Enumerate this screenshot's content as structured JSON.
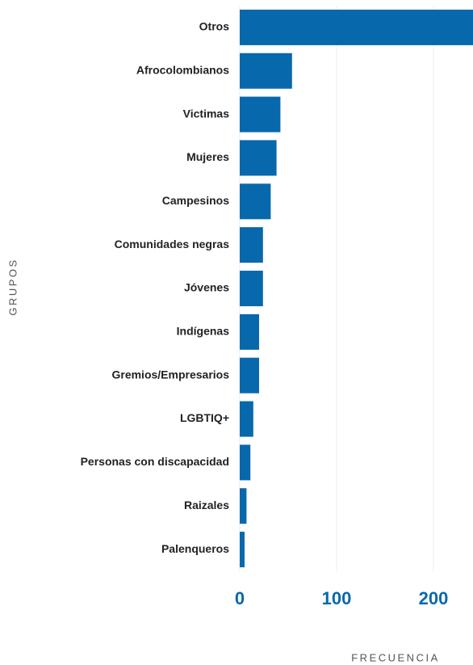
{
  "chart_data": {
    "type": "bar",
    "orientation": "horizontal",
    "categories": [
      "Otros",
      "Afrocolombianos",
      "Victimas",
      "Mujeres",
      "Campesinos",
      "Comunidades negras",
      "Jóvenes",
      "Indígenas",
      "Gremios/Empresarios",
      "LGBTIQ+",
      "Personas con discapacidad",
      "Raizales",
      "Palenqueros"
    ],
    "values": [
      242,
      54,
      42,
      38,
      32,
      24,
      24,
      20,
      20,
      14,
      11,
      7,
      5
    ],
    "color": "#0868ac",
    "xlim": [
      0,
      240
    ],
    "xticks": [
      0,
      100,
      200
    ],
    "grid": true,
    "xlabel": "FRECUENCIA",
    "ylabel": "GRUPOS"
  }
}
